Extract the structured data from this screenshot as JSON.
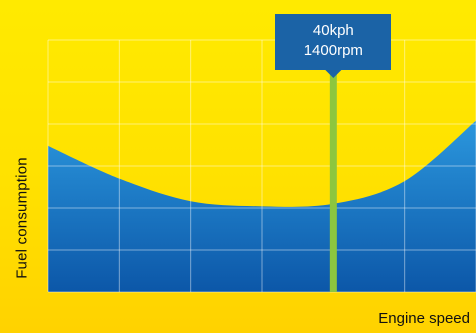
{
  "chart_data": {
    "type": "area",
    "title": "",
    "xlabel": "Engine speed",
    "ylabel": "Fuel consumption",
    "x": [
      0,
      10,
      20,
      30,
      40,
      50,
      60
    ],
    "values": [
      0.58,
      0.45,
      0.36,
      0.34,
      0.35,
      0.44,
      0.68
    ],
    "xlim": [
      0,
      60
    ],
    "ylim": [
      0,
      1
    ],
    "grid": true,
    "fill_color_top": "#2b97dd",
    "fill_color_bottom": "#0c57a8",
    "annotation": {
      "x": 40,
      "line1": "40kph",
      "line2": "1400rpm",
      "line_color": "#8cc63f",
      "box_color": "#1b63a6"
    }
  }
}
